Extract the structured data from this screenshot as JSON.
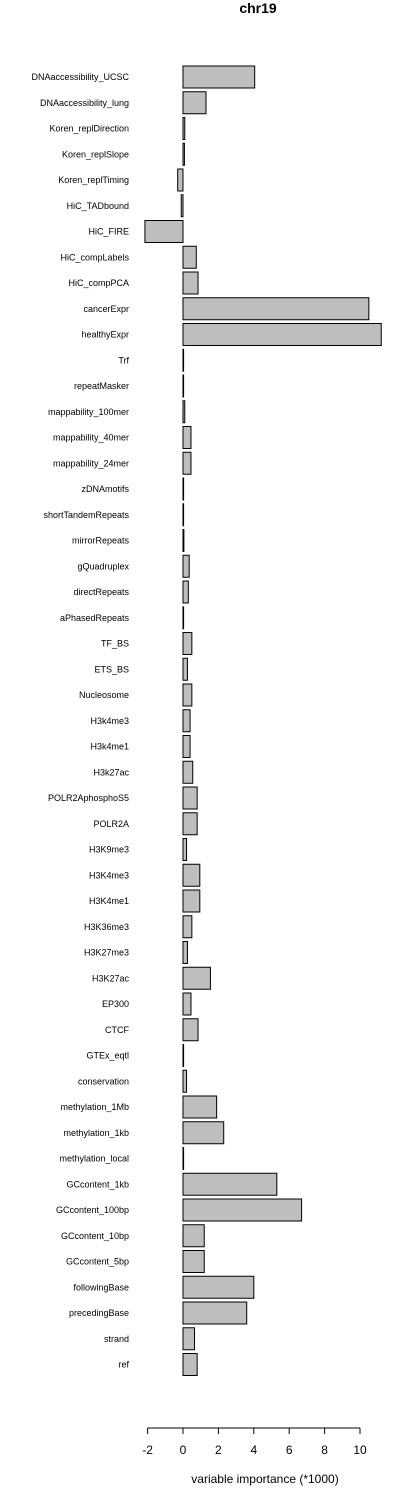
{
  "chart_data": {
    "type": "bar",
    "orientation": "horizontal",
    "title": "chr19",
    "xlabel": "variable importance (*1000)",
    "ylabel": "",
    "xlim": [
      -2,
      11.2
    ],
    "xticks": [
      -2,
      0,
      2,
      4,
      6,
      8,
      10
    ],
    "xtick_labels": [
      "-2",
      "0",
      "2",
      "4",
      "6",
      "8",
      "10"
    ],
    "bar_color": "#bebebe",
    "grid": false,
    "categories": [
      "DNAaccessibility_UCSC",
      "DNAaccessibility_lung",
      "Koren_replDirection",
      "Koren_replSlope",
      "Koren_replTiming",
      "HiC_TADbound",
      "HiC_FIRE",
      "HiC_compLabels",
      "HiC_compPCA",
      "cancerExpr",
      "healthyExpr",
      "Trf",
      "repeatMasker",
      "mappability_100mer",
      "mappability_40mer",
      "mappability_24mer",
      "zDNAmotifs",
      "shortTandemRepeats",
      "mirrorRepeats",
      "gQuadruplex",
      "directRepeats",
      "aPhasedRepeats",
      "TF_BS",
      "ETS_BS",
      "Nucleosome",
      "H3k4me3",
      "H3k4me1",
      "H3k27ac",
      "POLR2AphosphoS5",
      "POLR2A",
      "H3K9me3",
      "H3K4me3",
      "H3K4me1",
      "H3K36me3",
      "H3K27me3",
      "H3K27ac",
      "EP300",
      "CTCF",
      "GTEx_eqtl",
      "conservation",
      "methylation_1Mb",
      "methylation_1kb",
      "methylation_local",
      "GCcontent_1kb",
      "GCcontent_100bp",
      "GCcontent_10bp",
      "GCcontent_5bp",
      "followingBase",
      "precedingBase",
      "strand",
      "ref"
    ],
    "values": [
      4.05,
      1.3,
      0.1,
      0.08,
      -0.3,
      -0.1,
      -2.15,
      0.75,
      0.85,
      10.5,
      11.2,
      0.02,
      0.02,
      0.1,
      0.45,
      0.45,
      0.02,
      0.02,
      0.05,
      0.35,
      0.3,
      0.02,
      0.5,
      0.25,
      0.5,
      0.4,
      0.4,
      0.55,
      0.8,
      0.8,
      0.2,
      0.95,
      0.95,
      0.5,
      0.25,
      1.55,
      0.45,
      0.85,
      0.02,
      0.2,
      1.9,
      2.3,
      0.02,
      5.3,
      6.7,
      1.2,
      1.2,
      4.0,
      3.6,
      0.65,
      0.8
    ]
  }
}
